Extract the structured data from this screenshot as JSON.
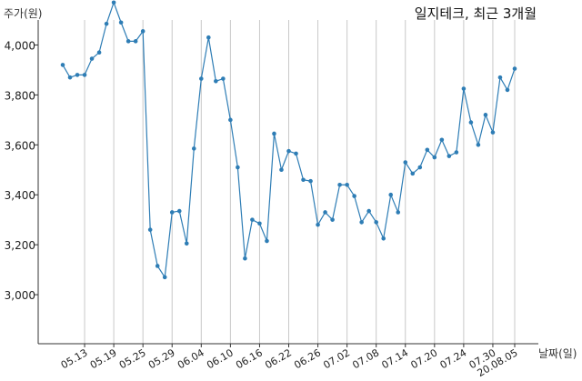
{
  "chart_data": {
    "type": "line",
    "title": "일지테크, 최근 3개월",
    "xlabel": "날짜(일)",
    "ylabel": "주가(원)",
    "ylim": [
      2840,
      4100
    ],
    "yticks": [
      3000,
      3200,
      3400,
      3600,
      3800,
      4000
    ],
    "ytick_labels": [
      "3,000",
      "3,200",
      "3,400",
      "3,600",
      "3,800",
      "4,000"
    ],
    "xtick_labels": [
      "05.13",
      "05.19",
      "05.25",
      "05.29",
      "06.04",
      "06.10",
      "06.16",
      "06.22",
      "06.26",
      "07.02",
      "07.08",
      "07.14",
      "07.20",
      "07.24",
      "07.30",
      "20.08.05"
    ],
    "xtick_index": [
      3,
      7,
      11,
      15,
      19,
      23,
      27,
      31,
      35,
      39,
      43,
      47,
      51,
      55,
      59,
      62
    ],
    "grid": "vertical",
    "color": "#2e7db5",
    "series": [
      {
        "values": [
          3920,
          3870,
          3880,
          3880,
          3945,
          3970,
          4085,
          4170,
          4090,
          4015,
          4015,
          4055,
          3260,
          3115,
          3070,
          3330,
          3335,
          3205,
          3585,
          3865,
          4030,
          3855,
          3865,
          3700,
          3510,
          3145,
          3300,
          3285,
          3215,
          3645,
          3500,
          3575,
          3565,
          3460,
          3455,
          3280,
          3330,
          3300,
          3440,
          3440,
          3395,
          3290,
          3335,
          3290,
          3225,
          3400,
          3330,
          3530,
          3485,
          3510,
          3580,
          3550,
          3620,
          3555,
          3570,
          3825,
          3690,
          3600,
          3720,
          3650,
          3870,
          3820,
          3905
        ]
      }
    ]
  }
}
